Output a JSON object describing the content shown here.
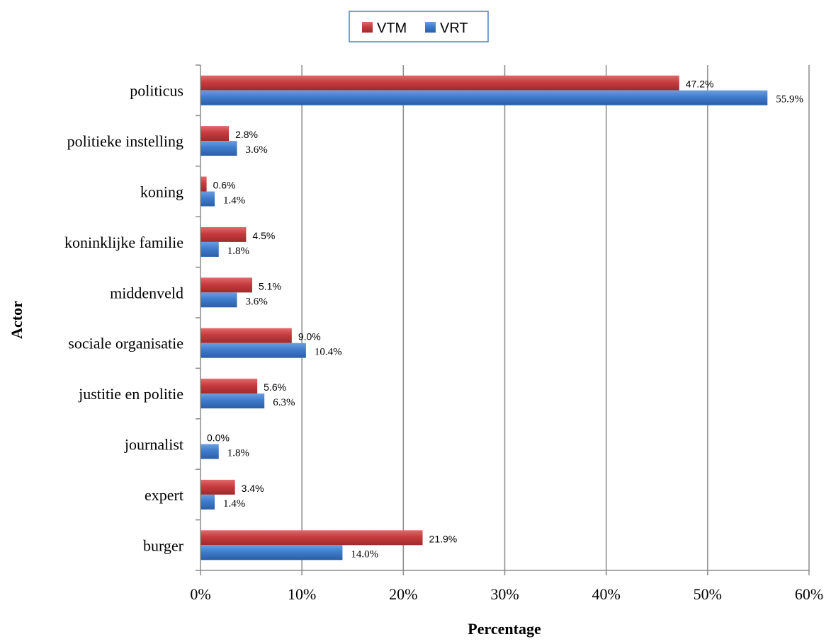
{
  "chart_data": {
    "type": "bar",
    "orientation": "horizontal",
    "title": "",
    "xlabel": "Percentage",
    "ylabel": "Actor",
    "xlim": [
      0,
      60
    ],
    "x_ticks": [
      "0%",
      "10%",
      "20%",
      "30%",
      "40%",
      "50%",
      "60%"
    ],
    "grid": "vertical",
    "legend_position": "top",
    "categories": [
      "politicus",
      "politieke instelling",
      "koning",
      "koninklijke familie",
      "middenveld",
      "sociale organisatie",
      "justitie en politie",
      "journalist",
      "expert",
      "burger"
    ],
    "series": [
      {
        "name": "VTM",
        "color": "#c0393b",
        "values": [
          47.2,
          2.8,
          0.6,
          4.5,
          5.1,
          9.0,
          5.6,
          0.0,
          3.4,
          21.9
        ],
        "labels": [
          "47.2%",
          "2.8%",
          "0.6%",
          "4.5%",
          "5.1%",
          "9.0%",
          "5.6%",
          "0.0%",
          "3.4%",
          "21.9%"
        ]
      },
      {
        "name": "VRT",
        "color": "#3d78c8",
        "values": [
          55.9,
          3.6,
          1.4,
          1.8,
          3.6,
          10.4,
          6.3,
          1.8,
          1.4,
          14.0
        ],
        "labels": [
          "55.9%",
          "3.6%",
          "1.4%",
          "1.8%",
          "3.6%",
          "10.4%",
          "6.3%",
          "1.8%",
          "1.4%",
          "14.0%"
        ]
      }
    ]
  }
}
